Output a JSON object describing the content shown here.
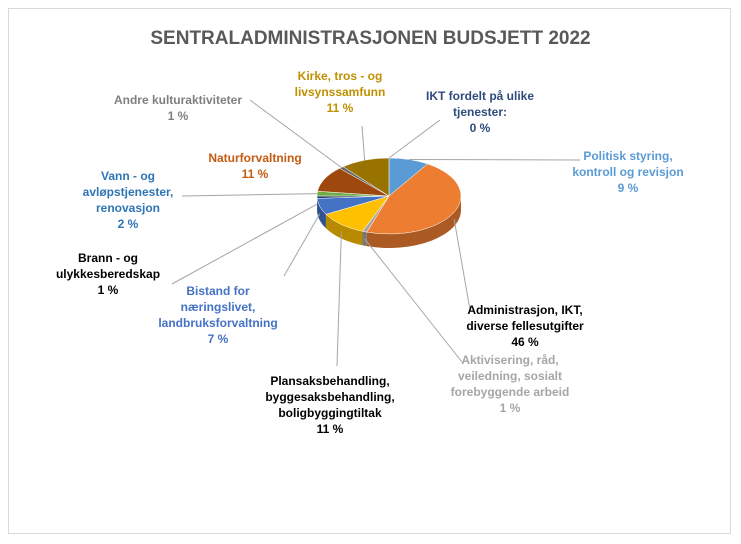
{
  "chart_data": {
    "type": "pie",
    "title": "SENTRALADMINISTRASJONEN BUDSJETT 2022",
    "categories": [
      "IKT fordelt på ulike\ntjenester:",
      "Politisk styring,\nkontroll og revisjon",
      "Administrasjon, IKT,\ndiverse fellesutgifter",
      "Aktivisering, råd,\nveiledning, sosialt\nforebyggende arbeid",
      "Plansaksbehandling,\nbyggesaksbehandling,\nboligbyggingtiltak",
      "Bistand for\nnæringslivet,\nlandbruksforvaltning",
      "Brann - og\nulykkesberedskap",
      "Vann - og\navløpstjenester,\nrenovasjon",
      "Naturforvaltning",
      "Andre kulturaktiviteter",
      "Kirke, tros - og\nlivsynssamfunn"
    ],
    "values": [
      0,
      9,
      46,
      1,
      11,
      7,
      1,
      2,
      11,
      1,
      11
    ],
    "value_labels": [
      "0 %",
      "9 %",
      "46 %",
      "1 %",
      "11 %",
      "7 %",
      "1 %",
      "2 %",
      "11 %",
      "1 %",
      "11 %"
    ],
    "colors": [
      "#264478",
      "#5b9bd5",
      "#ed7d31",
      "#a5a5a5",
      "#ffc000",
      "#4472c4",
      "#1f3864",
      "#70ad47",
      "#9e480e",
      "#636363",
      "#997300"
    ],
    "label_colors": [
      "#2f4b7c",
      "#5b9bd5",
      "#000000",
      "#a6a6a6",
      "#000000",
      "#4472c4",
      "#000000",
      "#2e75b6",
      "#c55a11",
      "#7f7f7f",
      "#bf9000"
    ]
  }
}
